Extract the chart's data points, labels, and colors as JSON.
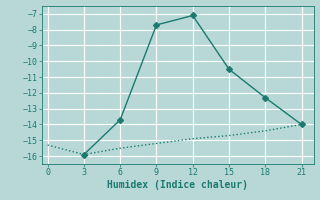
{
  "title": "",
  "xlabel": "Humidex (Indice chaleur)",
  "ylabel": "",
  "line1_x": [
    3,
    6,
    9,
    12,
    15,
    18,
    21
  ],
  "line1_y": [
    -15.9,
    -13.7,
    -7.7,
    -7.1,
    -10.5,
    -12.3,
    -14.0
  ],
  "line2_x": [
    0,
    3,
    6,
    9,
    12,
    15,
    18,
    21
  ],
  "line2_y": [
    -15.3,
    -15.9,
    -15.5,
    -15.2,
    -14.9,
    -14.7,
    -14.4,
    -14.0
  ],
  "xlim": [
    -0.5,
    22
  ],
  "ylim": [
    -16.5,
    -6.5
  ],
  "xticks": [
    0,
    3,
    6,
    9,
    12,
    15,
    18,
    21
  ],
  "yticks": [
    -16,
    -15,
    -14,
    -13,
    -12,
    -11,
    -10,
    -9,
    -8,
    -7
  ],
  "line_color": "#1a7a6e",
  "bg_color": "#b8d8d8",
  "grid_color": "#ffffff",
  "marker": "D",
  "marker_size": 3,
  "linewidth": 1.0
}
